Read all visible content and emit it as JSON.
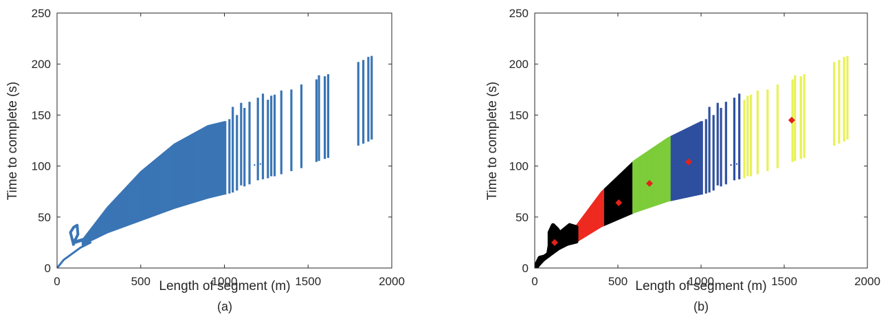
{
  "chart_data": [
    {
      "type": "scatter",
      "caption": "(a)",
      "xlabel": "Length of segment (m)",
      "ylabel": "Time to complete (s)",
      "xlim": [
        0,
        2000
      ],
      "ylim": [
        0,
        250
      ],
      "xticks": [
        "0",
        "500",
        "1000",
        "1500",
        "2000"
      ],
      "yticks": [
        "0",
        "50",
        "100",
        "150",
        "200",
        "250"
      ],
      "grid": false,
      "color": "#3a75b5",
      "dense_band": {
        "x_from": 150,
        "x_to": 1000,
        "lower": [
          [
            150,
            22
          ],
          [
            300,
            34
          ],
          [
            500,
            46
          ],
          [
            700,
            58
          ],
          [
            900,
            68
          ],
          [
            1000,
            72
          ]
        ],
        "upper": [
          [
            150,
            28
          ],
          [
            300,
            60
          ],
          [
            500,
            95
          ],
          [
            700,
            122
          ],
          [
            900,
            140
          ],
          [
            1000,
            144
          ]
        ]
      },
      "small_features": {
        "start_curve": [
          [
            0,
            0
          ],
          [
            40,
            8
          ],
          [
            90,
            14
          ],
          [
            140,
            20
          ],
          [
            200,
            25
          ]
        ],
        "hook": [
          [
            100,
            22
          ],
          [
            80,
            35
          ],
          [
            100,
            40
          ],
          [
            120,
            42
          ],
          [
            125,
            33
          ],
          [
            110,
            28
          ],
          [
            90,
            26
          ]
        ]
      },
      "segments": [
        {
          "x": 1005,
          "y1": 72,
          "y2": 144
        },
        {
          "x": 1030,
          "y1": 73,
          "y2": 146
        },
        {
          "x": 1050,
          "y1": 74,
          "y2": 158
        },
        {
          "x": 1075,
          "y1": 76,
          "y2": 150
        },
        {
          "x": 1100,
          "y1": 81,
          "y2": 162
        },
        {
          "x": 1120,
          "y1": 80,
          "y2": 157
        },
        {
          "x": 1150,
          "y1": 82,
          "y2": 163
        },
        {
          "x": 1200,
          "y1": 86,
          "y2": 167
        },
        {
          "x": 1230,
          "y1": 87,
          "y2": 171
        },
        {
          "x": 1260,
          "y1": 88,
          "y2": 165
        },
        {
          "x": 1280,
          "y1": 90,
          "y2": 169
        },
        {
          "x": 1300,
          "y1": 90,
          "y2": 170
        },
        {
          "x": 1340,
          "y1": 92,
          "y2": 174
        },
        {
          "x": 1400,
          "y1": 95,
          "y2": 175
        },
        {
          "x": 1460,
          "y1": 98,
          "y2": 180
        },
        {
          "x": 1550,
          "y1": 104,
          "y2": 185
        },
        {
          "x": 1565,
          "y1": 105,
          "y2": 189
        },
        {
          "x": 1600,
          "y1": 107,
          "y2": 188
        },
        {
          "x": 1620,
          "y1": 108,
          "y2": 190
        },
        {
          "x": 1800,
          "y1": 120,
          "y2": 202
        },
        {
          "x": 1830,
          "y1": 122,
          "y2": 204
        },
        {
          "x": 1860,
          "y1": 124,
          "y2": 207
        },
        {
          "x": 1880,
          "y1": 126,
          "y2": 208
        }
      ],
      "dots": [
        [
          1150,
          100
        ],
        [
          1180,
          101
        ],
        [
          1200,
          101
        ],
        [
          1215,
          102
        ]
      ]
    },
    {
      "type": "scatter",
      "caption": "(b)",
      "xlabel": "Length of segment (m)",
      "ylabel": "Time to complete (s)",
      "xlim": [
        0,
        2000
      ],
      "ylim": [
        0,
        250
      ],
      "xticks": [
        "0",
        "500",
        "1000",
        "1500",
        "2000"
      ],
      "yticks": [
        "0",
        "50",
        "100",
        "150",
        "200",
        "250"
      ],
      "grid": false,
      "clusters": [
        {
          "color": "#000000",
          "x_from": 0,
          "x_to": 250
        },
        {
          "color": "#ee2a21",
          "x_from": 250,
          "x_to": 420
        },
        {
          "color": "#000000",
          "x_from": 420,
          "x_to": 590
        },
        {
          "color": "#7dcc3a",
          "x_from": 590,
          "x_to": 820
        },
        {
          "color": "#2f4f9f",
          "x_from": 820,
          "x_to": 1250
        },
        {
          "color": "#e8f256",
          "x_from": 1250,
          "x_to": 1900
        }
      ],
      "centroids": [
        {
          "x": 120,
          "y": 25
        },
        {
          "x": 505,
          "y": 64
        },
        {
          "x": 690,
          "y": 83
        },
        {
          "x": 925,
          "y": 104
        },
        {
          "x": 1545,
          "y": 145
        }
      ],
      "centroid_color": "#e2231a",
      "dense_band": {
        "x_from": 240,
        "x_to": 1000,
        "lower": [
          [
            240,
            24
          ],
          [
            400,
            40
          ],
          [
            600,
            54
          ],
          [
            800,
            65
          ],
          [
            1000,
            72
          ]
        ],
        "upper": [
          [
            240,
            40
          ],
          [
            400,
            75
          ],
          [
            600,
            106
          ],
          [
            800,
            128
          ],
          [
            1000,
            144
          ]
        ]
      },
      "small_features": {
        "start_curve": [
          [
            0,
            0
          ],
          [
            40,
            8
          ],
          [
            90,
            14
          ],
          [
            140,
            20
          ],
          [
            200,
            25
          ]
        ],
        "black_blob": [
          [
            0,
            0
          ],
          [
            30,
            10
          ],
          [
            80,
            12
          ],
          [
            90,
            22
          ],
          [
            90,
            35
          ],
          [
            110,
            42
          ],
          [
            135,
            38
          ],
          [
            150,
            34
          ],
          [
            180,
            38
          ],
          [
            210,
            42
          ],
          [
            250,
            40
          ],
          [
            250,
            26
          ],
          [
            200,
            24
          ],
          [
            150,
            22
          ],
          [
            110,
            16
          ],
          [
            60,
            10
          ],
          [
            20,
            3
          ]
        ]
      },
      "segments": [
        {
          "x": 1005,
          "y1": 72,
          "y2": 144
        },
        {
          "x": 1030,
          "y1": 73,
          "y2": 146
        },
        {
          "x": 1050,
          "y1": 74,
          "y2": 158
        },
        {
          "x": 1075,
          "y1": 76,
          "y2": 150
        },
        {
          "x": 1100,
          "y1": 81,
          "y2": 162
        },
        {
          "x": 1120,
          "y1": 80,
          "y2": 157
        },
        {
          "x": 1150,
          "y1": 82,
          "y2": 163
        },
        {
          "x": 1200,
          "y1": 86,
          "y2": 167
        },
        {
          "x": 1230,
          "y1": 87,
          "y2": 171
        },
        {
          "x": 1260,
          "y1": 88,
          "y2": 165
        },
        {
          "x": 1280,
          "y1": 90,
          "y2": 169
        },
        {
          "x": 1300,
          "y1": 90,
          "y2": 170
        },
        {
          "x": 1340,
          "y1": 92,
          "y2": 174
        },
        {
          "x": 1400,
          "y1": 95,
          "y2": 175
        },
        {
          "x": 1460,
          "y1": 98,
          "y2": 180
        },
        {
          "x": 1550,
          "y1": 104,
          "y2": 185
        },
        {
          "x": 1565,
          "y1": 105,
          "y2": 189
        },
        {
          "x": 1600,
          "y1": 107,
          "y2": 188
        },
        {
          "x": 1620,
          "y1": 108,
          "y2": 190
        },
        {
          "x": 1800,
          "y1": 120,
          "y2": 202
        },
        {
          "x": 1830,
          "y1": 122,
          "y2": 204
        },
        {
          "x": 1860,
          "y1": 124,
          "y2": 207
        },
        {
          "x": 1880,
          "y1": 126,
          "y2": 208
        }
      ],
      "dots": [
        [
          1150,
          100
        ],
        [
          1180,
          101
        ],
        [
          1200,
          101
        ],
        [
          1215,
          102
        ]
      ]
    }
  ]
}
